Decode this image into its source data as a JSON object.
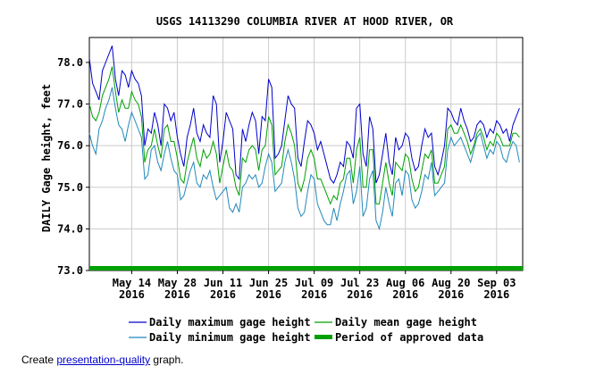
{
  "chart_data": {
    "type": "line",
    "title": "USGS 14113290 COLUMBIA RIVER AT HOOD RIVER, OR",
    "ylabel": "DAILY Gage height, feet",
    "ylim": [
      73.0,
      78.6
    ],
    "y_ticks": [
      "78.0",
      "77.0",
      "76.0",
      "75.0",
      "74.0",
      "73.0"
    ],
    "y_tick_values": [
      78,
      77,
      76,
      75,
      74,
      73
    ],
    "x_start_date": "2016-05-01",
    "x_end_date": "2016-09-11",
    "x_ticks": [
      {
        "date": "2016-05-14",
        "line1": "May 14",
        "line2": "2016"
      },
      {
        "date": "2016-05-28",
        "line1": "May 28",
        "line2": "2016"
      },
      {
        "date": "2016-06-11",
        "line1": "Jun 11",
        "line2": "2016"
      },
      {
        "date": "2016-06-25",
        "line1": "Jun 25",
        "line2": "2016"
      },
      {
        "date": "2016-07-09",
        "line1": "Jul 09",
        "line2": "2016"
      },
      {
        "date": "2016-07-23",
        "line1": "Jul 23",
        "line2": "2016"
      },
      {
        "date": "2016-08-06",
        "line1": "Aug 06",
        "line2": "2016"
      },
      {
        "date": "2016-08-20",
        "line1": "Aug 20",
        "line2": "2016"
      },
      {
        "date": "2016-09-03",
        "line1": "Sep 03",
        "line2": "2016"
      }
    ],
    "grid": true,
    "legend_placement": "bottom",
    "series": [
      {
        "name": "Daily maximum gage height",
        "color": "#0000cc",
        "values": [
          78.1,
          77.5,
          77.3,
          77.1,
          77.8,
          78.0,
          78.2,
          78.4,
          77.6,
          77.2,
          77.8,
          77.7,
          77.4,
          77.8,
          77.6,
          77.5,
          77.2,
          76.0,
          76.4,
          76.3,
          76.8,
          76.5,
          76.0,
          77.0,
          76.9,
          76.6,
          76.8,
          76.2,
          75.8,
          75.5,
          76.2,
          76.5,
          76.9,
          76.3,
          76.1,
          76.5,
          76.3,
          76.2,
          77.2,
          77.0,
          75.6,
          76.1,
          76.8,
          76.6,
          76.4,
          75.3,
          75.2,
          76.4,
          76.1,
          76.5,
          76.8,
          76.6,
          75.8,
          76.7,
          76.6,
          77.6,
          77.4,
          75.7,
          75.8,
          76.0,
          76.6,
          77.2,
          77.0,
          76.9,
          75.7,
          75.5,
          76.1,
          76.6,
          76.5,
          76.3,
          75.9,
          76.1,
          75.8,
          75.5,
          75.2,
          75.1,
          75.3,
          75.6,
          75.5,
          76.1,
          76.0,
          75.7,
          76.9,
          77.0,
          75.8,
          75.5,
          76.7,
          76.4,
          75.1,
          75.3,
          75.8,
          76.3,
          75.6,
          75.3,
          76.2,
          75.9,
          76.0,
          76.3,
          76.2,
          75.7,
          75.4,
          75.5,
          76.0,
          76.4,
          76.2,
          76.3,
          75.5,
          75.3,
          75.6,
          76.0,
          76.9,
          76.8,
          76.6,
          76.5,
          76.9,
          76.6,
          76.4,
          76.1,
          76.2,
          76.5,
          76.6,
          76.5,
          76.2,
          76.4,
          76.3,
          76.6,
          76.5,
          76.3,
          76.4,
          76.1,
          76.5,
          76.7,
          76.9
        ]
      },
      {
        "name": "Daily minimum gage height",
        "color": "#2288bb",
        "values": [
          76.3,
          76.0,
          75.8,
          76.4,
          76.6,
          76.9,
          77.1,
          77.4,
          76.9,
          76.5,
          76.4,
          76.1,
          76.5,
          76.8,
          76.6,
          76.4,
          76.2,
          75.2,
          75.3,
          75.9,
          76.0,
          75.6,
          75.4,
          75.8,
          76.1,
          75.7,
          75.4,
          75.3,
          74.7,
          74.8,
          75.1,
          75.4,
          75.6,
          75.1,
          75.0,
          75.3,
          75.2,
          75.4,
          75.0,
          74.7,
          74.8,
          74.9,
          75.0,
          74.5,
          74.4,
          74.6,
          74.4,
          75.0,
          75.1,
          75.3,
          75.2,
          75.3,
          75.0,
          75.1,
          75.5,
          75.8,
          75.6,
          74.9,
          75.0,
          75.1,
          75.6,
          75.9,
          75.6,
          75.2,
          74.5,
          74.3,
          74.4,
          74.9,
          75.3,
          75.2,
          74.6,
          74.4,
          74.2,
          74.1,
          74.1,
          74.5,
          74.2,
          74.6,
          74.9,
          75.3,
          75.4,
          74.6,
          74.9,
          75.5,
          74.3,
          74.5,
          75.2,
          75.4,
          74.2,
          74.0,
          74.4,
          75.0,
          74.6,
          74.3,
          75.1,
          75.2,
          74.8,
          75.4,
          75.3,
          74.7,
          74.5,
          74.6,
          74.9,
          75.3,
          75.2,
          75.6,
          74.8,
          74.9,
          75.0,
          75.1,
          75.9,
          76.2,
          76.0,
          76.1,
          76.2,
          76.0,
          75.8,
          75.6,
          75.9,
          76.2,
          76.3,
          76.0,
          75.7,
          75.9,
          75.8,
          76.1,
          76.0,
          75.7,
          75.6,
          75.9,
          76.1,
          76.0,
          75.6
        ]
      },
      {
        "name": "Daily mean gage height",
        "color": "#00a000",
        "values": [
          77.0,
          76.7,
          76.6,
          76.8,
          77.2,
          77.4,
          77.6,
          77.9,
          77.3,
          76.8,
          77.1,
          76.9,
          76.9,
          77.3,
          77.1,
          77.0,
          76.7,
          75.6,
          75.9,
          76.0,
          76.4,
          76.0,
          75.7,
          76.4,
          76.5,
          76.1,
          76.1,
          75.7,
          75.2,
          75.1,
          75.6,
          75.9,
          76.2,
          75.7,
          75.5,
          75.9,
          75.7,
          75.8,
          76.1,
          75.8,
          75.1,
          75.5,
          75.9,
          75.5,
          75.4,
          75.0,
          74.8,
          75.7,
          75.6,
          75.9,
          76.0,
          75.9,
          75.4,
          75.9,
          76.0,
          76.7,
          76.5,
          75.3,
          75.4,
          75.5,
          76.1,
          76.5,
          76.3,
          76.0,
          75.1,
          74.9,
          75.2,
          75.7,
          75.9,
          75.7,
          75.2,
          75.2,
          75.0,
          74.8,
          74.6,
          74.8,
          74.7,
          75.1,
          75.2,
          75.7,
          75.7,
          75.1,
          75.9,
          76.2,
          75.0,
          75.0,
          75.9,
          75.9,
          74.6,
          74.6,
          75.1,
          75.6,
          75.1,
          74.8,
          75.6,
          75.5,
          75.4,
          75.8,
          75.7,
          75.2,
          74.9,
          75.0,
          75.4,
          75.8,
          75.7,
          75.9,
          75.1,
          75.1,
          75.3,
          75.5,
          76.4,
          76.5,
          76.3,
          76.3,
          76.5,
          76.3,
          76.1,
          75.8,
          76.0,
          76.3,
          76.4,
          76.2,
          75.9,
          76.1,
          76.0,
          76.3,
          76.2,
          76.0,
          76.0,
          76.0,
          76.3,
          76.3,
          76.2
        ]
      }
    ],
    "approved_period": {
      "name": "Period of approved data",
      "color": "#00a000",
      "start": "2016-05-01",
      "end": "2016-09-11"
    },
    "legend": [
      {
        "label": "Daily maximum gage height",
        "color": "#0000cc",
        "kind": "line"
      },
      {
        "label": "Daily mean gage height",
        "color": "#00a000",
        "kind": "line"
      },
      {
        "label": "Daily minimum gage height",
        "color": "#2288bb",
        "kind": "line"
      },
      {
        "label": "Period of approved data",
        "color": "#00a000",
        "kind": "bar"
      }
    ]
  },
  "footer": {
    "prefix": "Create ",
    "link_text": "presentation-quality",
    "suffix": " graph."
  }
}
